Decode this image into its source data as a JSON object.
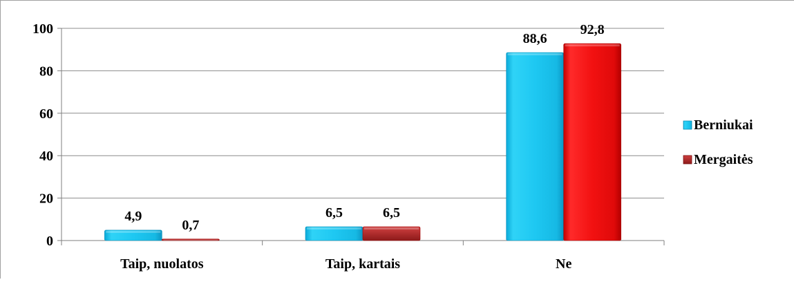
{
  "colors": {
    "Berniukai": "#1ec8f2",
    "Mergaitės": "#ee1111",
    "grid": "#8c8c8c",
    "axis": "#7f7f7f"
  },
  "chart_data": {
    "type": "bar",
    "title": "",
    "xlabel": "",
    "ylabel": "",
    "categories": [
      "Taip, nuolatos",
      "Taip, kartais",
      "Ne"
    ],
    "ylim": [
      0,
      100
    ],
    "yticks": [
      0,
      20,
      40,
      60,
      80,
      100
    ],
    "grid": true,
    "legend_position": "right",
    "series": [
      {
        "name": "Berniukai",
        "values": [
          4.9,
          6.5,
          88.6
        ],
        "labels": [
          "4,9",
          "6,5",
          "88,6"
        ]
      },
      {
        "name": "Mergaitės",
        "values": [
          0.7,
          6.5,
          92.8
        ],
        "labels": [
          "0,7",
          "6,5",
          "92,8"
        ]
      }
    ]
  }
}
